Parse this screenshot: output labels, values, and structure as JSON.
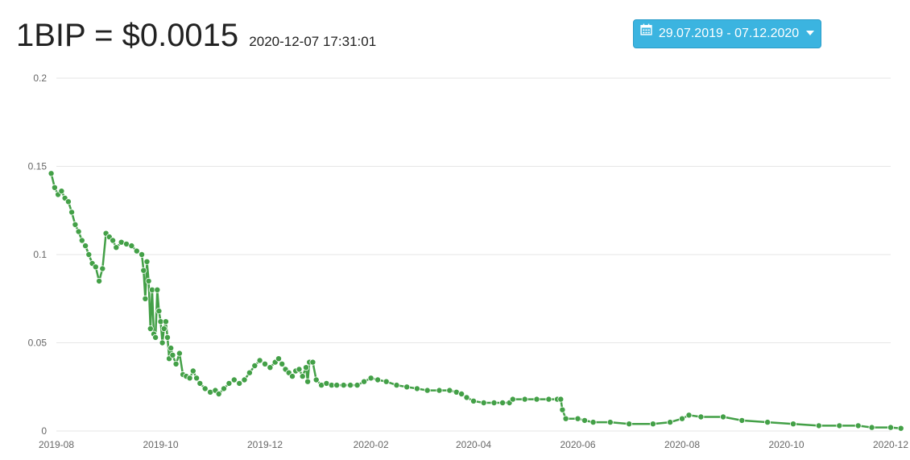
{
  "header": {
    "price": "1BIP = $0.0015",
    "timestamp": "2020-12-07 17:31:01",
    "date_range_label": "29.07.2019 - 07.12.2020"
  },
  "icons": {
    "calendar": "calendar-icon",
    "caret": "caret-down-icon"
  },
  "colors": {
    "series": "#43a047",
    "button": "#3bb4e0",
    "grid": "#e6e6e6"
  },
  "chart_data": {
    "type": "line",
    "title": "",
    "xlabel": "",
    "ylabel": "",
    "ylim": [
      0,
      0.2
    ],
    "yticks": [
      0,
      0.05,
      0.1,
      0.15,
      0.2
    ],
    "ytick_labels": [
      "0",
      "0.05",
      "0.1",
      "0.15",
      "0.2"
    ],
    "xlim": [
      "2019-08-01",
      "2020-12-01"
    ],
    "xtick_labels": [
      "2019-08",
      "2019-10",
      "2019-12",
      "2020-02",
      "2020-04",
      "2020-06",
      "2020-08",
      "2020-10",
      "2020-12"
    ],
    "grid": true,
    "legend": false,
    "series": [
      {
        "points": [
          [
            "2019-07-29",
            0.146
          ],
          [
            "2019-07-31",
            0.138
          ],
          [
            "2019-08-02",
            0.134
          ],
          [
            "2019-08-04",
            0.136
          ],
          [
            "2019-08-06",
            0.132
          ],
          [
            "2019-08-08",
            0.13
          ],
          [
            "2019-08-10",
            0.124
          ],
          [
            "2019-08-12",
            0.117
          ],
          [
            "2019-08-14",
            0.113
          ],
          [
            "2019-08-16",
            0.108
          ],
          [
            "2019-08-18",
            0.105
          ],
          [
            "2019-08-20",
            0.1
          ],
          [
            "2019-08-22",
            0.095
          ],
          [
            "2019-08-24",
            0.093
          ],
          [
            "2019-08-26",
            0.085
          ],
          [
            "2019-08-28",
            0.092
          ],
          [
            "2019-08-30",
            0.112
          ],
          [
            "2019-09-01",
            0.11
          ],
          [
            "2019-09-03",
            0.108
          ],
          [
            "2019-09-05",
            0.104
          ],
          [
            "2019-09-08",
            0.107
          ],
          [
            "2019-09-11",
            0.106
          ],
          [
            "2019-09-14",
            0.105
          ],
          [
            "2019-09-17",
            0.102
          ],
          [
            "2019-09-20",
            0.1
          ],
          [
            "2019-09-21",
            0.091
          ],
          [
            "2019-09-22",
            0.075
          ],
          [
            "2019-09-23",
            0.096
          ],
          [
            "2019-09-24",
            0.085
          ],
          [
            "2019-09-25",
            0.058
          ],
          [
            "2019-09-26",
            0.08
          ],
          [
            "2019-09-27",
            0.055
          ],
          [
            "2019-09-28",
            0.053
          ],
          [
            "2019-09-29",
            0.08
          ],
          [
            "2019-09-30",
            0.068
          ],
          [
            "2019-10-01",
            0.062
          ],
          [
            "2019-10-02",
            0.05
          ],
          [
            "2019-10-03",
            0.058
          ],
          [
            "2019-10-04",
            0.062
          ],
          [
            "2019-10-05",
            0.053
          ],
          [
            "2019-10-06",
            0.041
          ],
          [
            "2019-10-07",
            0.047
          ],
          [
            "2019-10-08",
            0.043
          ],
          [
            "2019-10-10",
            0.038
          ],
          [
            "2019-10-12",
            0.044
          ],
          [
            "2019-10-14",
            0.032
          ],
          [
            "2019-10-16",
            0.031
          ],
          [
            "2019-10-18",
            0.03
          ],
          [
            "2019-10-20",
            0.034
          ],
          [
            "2019-10-22",
            0.03
          ],
          [
            "2019-10-24",
            0.027
          ],
          [
            "2019-10-27",
            0.024
          ],
          [
            "2019-10-30",
            0.022
          ],
          [
            "2019-11-02",
            0.023
          ],
          [
            "2019-11-04",
            0.021
          ],
          [
            "2019-11-07",
            0.024
          ],
          [
            "2019-11-10",
            0.027
          ],
          [
            "2019-11-13",
            0.029
          ],
          [
            "2019-11-16",
            0.027
          ],
          [
            "2019-11-19",
            0.029
          ],
          [
            "2019-11-22",
            0.033
          ],
          [
            "2019-11-25",
            0.037
          ],
          [
            "2019-11-28",
            0.04
          ],
          [
            "2019-12-01",
            0.038
          ],
          [
            "2019-12-04",
            0.036
          ],
          [
            "2019-12-07",
            0.039
          ],
          [
            "2019-12-09",
            0.041
          ],
          [
            "2019-12-11",
            0.038
          ],
          [
            "2019-12-13",
            0.035
          ],
          [
            "2019-12-15",
            0.033
          ],
          [
            "2019-12-17",
            0.031
          ],
          [
            "2019-12-19",
            0.034
          ],
          [
            "2019-12-21",
            0.035
          ],
          [
            "2019-12-23",
            0.031
          ],
          [
            "2019-12-25",
            0.036
          ],
          [
            "2019-12-26",
            0.028
          ],
          [
            "2019-12-27",
            0.039
          ],
          [
            "2019-12-29",
            0.039
          ],
          [
            "2019-12-31",
            0.029
          ],
          [
            "2020-01-03",
            0.026
          ],
          [
            "2020-01-06",
            0.027
          ],
          [
            "2020-01-09",
            0.026
          ],
          [
            "2020-01-12",
            0.026
          ],
          [
            "2020-01-16",
            0.026
          ],
          [
            "2020-01-20",
            0.026
          ],
          [
            "2020-01-24",
            0.026
          ],
          [
            "2020-01-28",
            0.028
          ],
          [
            "2020-02-01",
            0.03
          ],
          [
            "2020-02-05",
            0.029
          ],
          [
            "2020-02-10",
            0.028
          ],
          [
            "2020-02-16",
            0.026
          ],
          [
            "2020-02-22",
            0.025
          ],
          [
            "2020-02-28",
            0.024
          ],
          [
            "2020-03-05",
            0.023
          ],
          [
            "2020-03-12",
            0.023
          ],
          [
            "2020-03-18",
            0.023
          ],
          [
            "2020-03-22",
            0.022
          ],
          [
            "2020-03-25",
            0.021
          ],
          [
            "2020-03-28",
            0.019
          ],
          [
            "2020-04-01",
            0.017
          ],
          [
            "2020-04-07",
            0.016
          ],
          [
            "2020-04-13",
            0.016
          ],
          [
            "2020-04-18",
            0.016
          ],
          [
            "2020-04-22",
            0.016
          ],
          [
            "2020-04-24",
            0.018
          ],
          [
            "2020-05-01",
            0.018
          ],
          [
            "2020-05-08",
            0.018
          ],
          [
            "2020-05-15",
            0.018
          ],
          [
            "2020-05-20",
            0.018
          ],
          [
            "2020-05-22",
            0.018
          ],
          [
            "2020-05-23",
            0.012
          ],
          [
            "2020-05-25",
            0.007
          ],
          [
            "2020-06-01",
            0.007
          ],
          [
            "2020-06-05",
            0.006
          ],
          [
            "2020-06-10",
            0.005
          ],
          [
            "2020-06-20",
            0.005
          ],
          [
            "2020-07-01",
            0.004
          ],
          [
            "2020-07-15",
            0.004
          ],
          [
            "2020-07-25",
            0.005
          ],
          [
            "2020-08-01",
            0.007
          ],
          [
            "2020-08-05",
            0.009
          ],
          [
            "2020-08-12",
            0.008
          ],
          [
            "2020-08-25",
            0.008
          ],
          [
            "2020-09-05",
            0.006
          ],
          [
            "2020-09-20",
            0.005
          ],
          [
            "2020-10-05",
            0.004
          ],
          [
            "2020-10-20",
            0.003
          ],
          [
            "2020-11-01",
            0.003
          ],
          [
            "2020-11-12",
            0.003
          ],
          [
            "2020-11-20",
            0.002
          ],
          [
            "2020-12-01",
            0.002
          ],
          [
            "2020-12-07",
            0.0015
          ]
        ]
      }
    ]
  }
}
